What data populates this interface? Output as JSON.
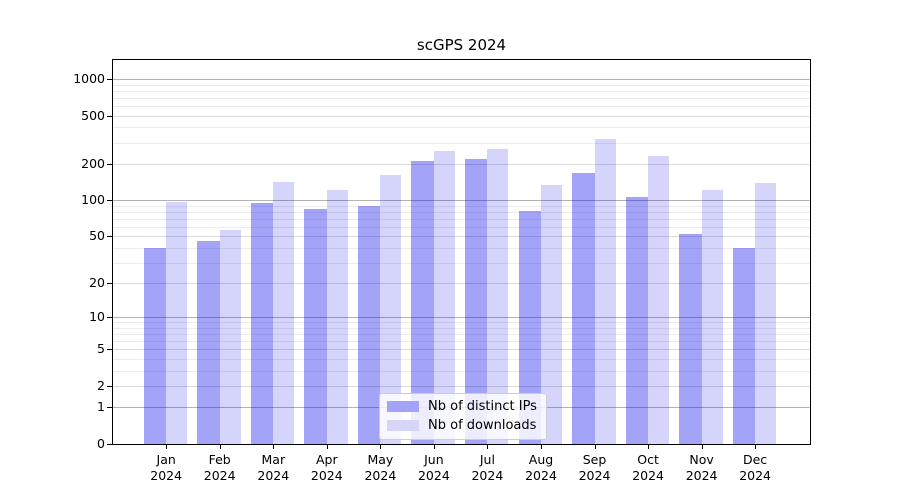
{
  "title": "scGPS 2024",
  "chart_data": {
    "type": "bar",
    "title": "scGPS 2024",
    "categories": [
      "Jan 2024",
      "Feb 2024",
      "Mar 2024",
      "Apr 2024",
      "May 2024",
      "Jun 2024",
      "Jul 2024",
      "Aug 2024",
      "Sep 2024",
      "Oct 2024",
      "Nov 2024",
      "Dec 2024"
    ],
    "series": [
      {
        "name": "Nb of distinct IPs",
        "color": "rgba(0,0,235,0.36)",
        "swatch_color": "#a3a3f8",
        "values": [
          40,
          46,
          95,
          85,
          90,
          211,
          220,
          81,
          169,
          107,
          52,
          40
        ]
      },
      {
        "name": "Nb of downloads",
        "color": "rgba(0,0,235,0.165)",
        "swatch_color": "#d5d5f7",
        "values": [
          97,
          57,
          142,
          121,
          162,
          255,
          264,
          134,
          320,
          232,
          122,
          139
        ]
      }
    ],
    "xlabel": "",
    "ylabel": "",
    "y_axis": {
      "scale": "log10(value+1)",
      "tick_values": [
        0,
        1,
        2,
        5,
        10,
        20,
        50,
        100,
        200,
        500,
        1000
      ],
      "range_top": 1434
    },
    "grid": "horizontal major+minor",
    "legend_position": "lower center"
  },
  "colors": {
    "background": "#ffffff",
    "spine": "#000000",
    "grid_major": "#b3b3b3",
    "grid_minor": "#ececec",
    "legend_border": "#cdcdcd"
  }
}
